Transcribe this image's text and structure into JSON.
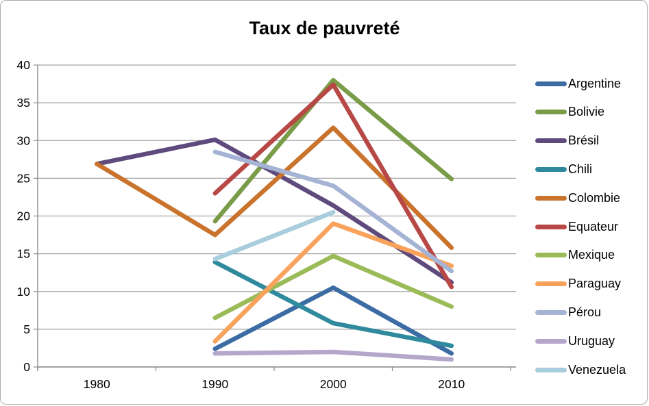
{
  "title": "Taux de pauvreté",
  "chart_data": {
    "type": "line",
    "title": "Taux de pauvreté",
    "categories": [
      "1980",
      "1990",
      "2000",
      "2010"
    ],
    "series": [
      {
        "name": "Argentine",
        "color": "#3c6ca4",
        "values": [
          null,
          2.4,
          10.5,
          1.8
        ]
      },
      {
        "name": "Bolivie",
        "color": "#7a9c48",
        "values": [
          null,
          19.3,
          38.0,
          24.9
        ]
      },
      {
        "name": "Brésil",
        "color": "#5f4a7d",
        "values": [
          26.9,
          30.1,
          21.4,
          11.2
        ]
      },
      {
        "name": "Chili",
        "color": "#2f8a9e",
        "values": [
          null,
          13.9,
          5.8,
          2.8
        ]
      },
      {
        "name": "Colombie",
        "color": "#c9732d",
        "values": [
          26.9,
          17.5,
          31.7,
          15.8
        ]
      },
      {
        "name": "Equateur",
        "color": "#b84845",
        "values": [
          null,
          23.0,
          37.4,
          10.6
        ]
      },
      {
        "name": "Mexique",
        "color": "#9bbb59",
        "values": [
          null,
          6.5,
          14.7,
          8.0
        ]
      },
      {
        "name": "Paraguay",
        "color": "#f9a25c",
        "values": [
          null,
          3.4,
          19.0,
          13.4
        ]
      },
      {
        "name": "Pérou",
        "color": "#a5b4d5",
        "values": [
          null,
          28.5,
          24.0,
          12.7
        ]
      },
      {
        "name": "Uruguay",
        "color": "#b5a6cb",
        "values": [
          null,
          1.8,
          2.0,
          1.0
        ]
      },
      {
        "name": "Venezuela",
        "color": "#a8cddd",
        "values": [
          null,
          14.3,
          20.5,
          null
        ]
      }
    ],
    "ylim": [
      0,
      40
    ],
    "ytick_step": 5,
    "y_tick_labels": [
      "0",
      "5",
      "10",
      "15",
      "20",
      "25",
      "30",
      "35",
      "40"
    ],
    "xlabel": "",
    "ylabel": "",
    "grid": "horizontal",
    "legend_position": "right"
  },
  "style": {
    "grid_color": "#a3a3a3",
    "axis_color": "#8c8c8c",
    "tick_label_color": "#000000",
    "frame_border_color": "#ababab",
    "line_width": 6.5
  }
}
